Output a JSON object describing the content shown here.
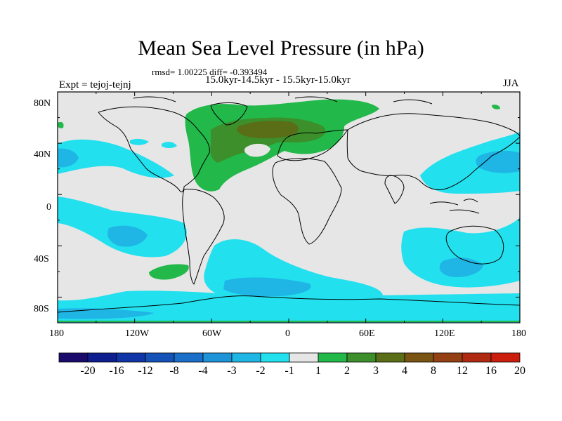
{
  "title": "Mean Sea Level Pressure (in hPa)",
  "stats": "rmsd= 1.00225 diff= -0.393494",
  "period": "15.0kyr-14.5kyr - 15.5kyr-15.0kyr",
  "experiment": "Expt = tejoj-tejnj",
  "season": "JJA",
  "axes": {
    "lat_ticks": [
      "80N",
      "40N",
      "0",
      "40S",
      "80S"
    ],
    "lon_ticks": [
      "180",
      "120W",
      "60W",
      "0",
      "60E",
      "120E",
      "180"
    ]
  },
  "colorbar": {
    "labels": [
      "-20",
      "-16",
      "-12",
      "-8",
      "-4",
      "-3",
      "-2",
      "-1",
      "1",
      "2",
      "3",
      "4",
      "8",
      "12",
      "16",
      "20"
    ],
    "colors": [
      "#1a0a6b",
      "#0f1e8f",
      "#1035a6",
      "#1452b8",
      "#1a6fc8",
      "#1f93d8",
      "#1fb6e6",
      "#22e0ee",
      "#e6e6e6",
      "#22b84a",
      "#3c8f2a",
      "#5a6e17",
      "#7a5412",
      "#954013",
      "#b02a12",
      "#cc1e0f"
    ]
  },
  "map_colors": {
    "land_sea_bg": "#e6e6e6",
    "neg_light": "#22e0ee",
    "neg_mid": "#1fb6e6",
    "neg_dark": "#1f93d8",
    "pos_light": "#22b84a",
    "pos_mid": "#3c8f2a",
    "pos_dark": "#5a6e17"
  }
}
